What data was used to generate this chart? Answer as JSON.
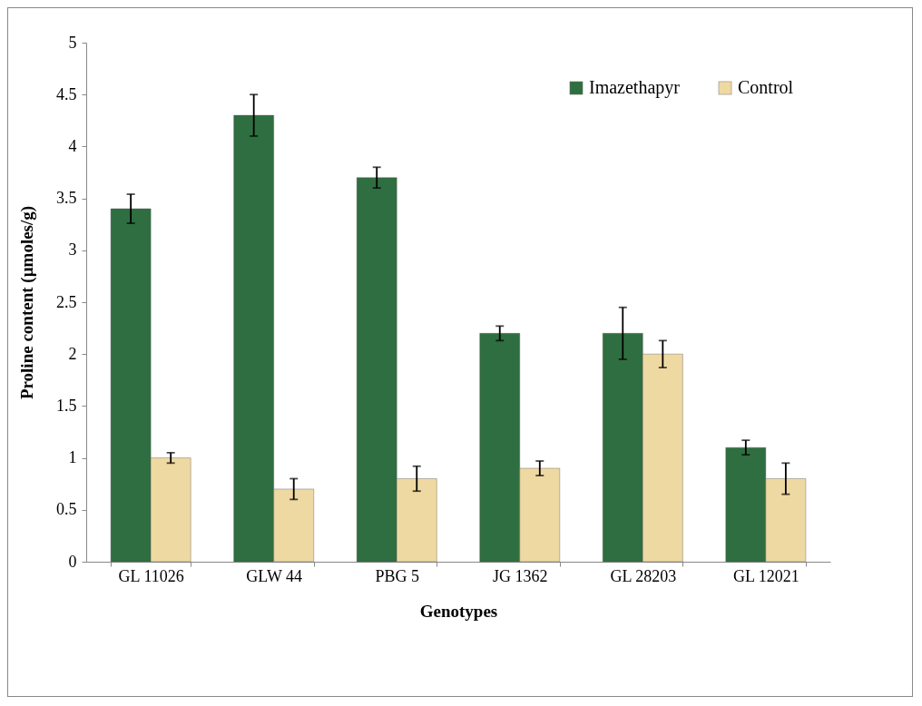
{
  "chart_data": {
    "type": "bar",
    "xlabel": "Genotypes",
    "ylabel": "Proline content (µmoles/g)",
    "categories": [
      "GL 11026",
      "GLW 44",
      "PBG 5",
      "JG 1362",
      "GL 28203",
      "GL 12021"
    ],
    "series": [
      {
        "name": "Imazethapyr",
        "color": "#2f6e40",
        "values": [
          3.4,
          4.3,
          3.7,
          2.2,
          2.2,
          1.1
        ],
        "errors": [
          0.14,
          0.2,
          0.1,
          0.07,
          0.25,
          0.07
        ]
      },
      {
        "name": "Control",
        "color": "#efd9a2",
        "values": [
          1.0,
          0.7,
          0.8,
          0.9,
          2.0,
          0.8
        ],
        "errors": [
          0.05,
          0.1,
          0.12,
          0.07,
          0.13,
          0.15
        ]
      }
    ],
    "ylim": [
      0,
      5
    ],
    "yticks": [
      0,
      0.5,
      1,
      1.5,
      2,
      2.5,
      3,
      3.5,
      4,
      4.5,
      5
    ],
    "grid": false,
    "legend": "top right"
  }
}
